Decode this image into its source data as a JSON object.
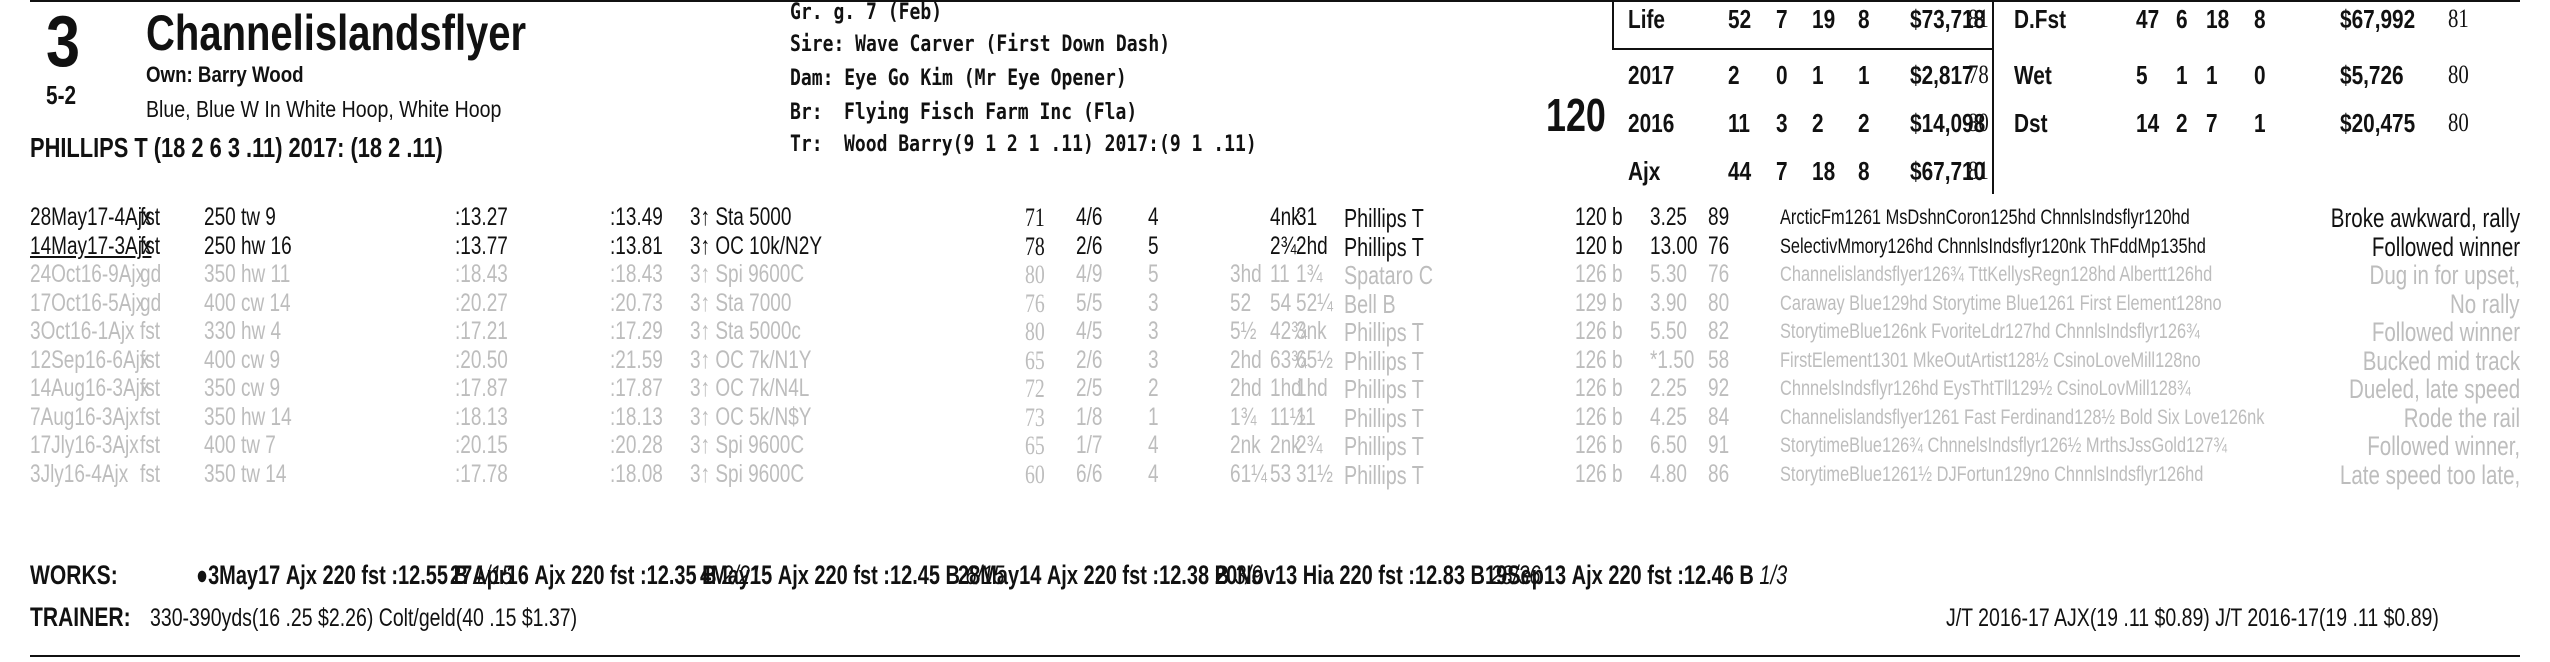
{
  "horse": {
    "program_number": "3",
    "name": "Channelislandsflyer",
    "odds": "5-2",
    "owner": "Own: Barry Wood",
    "silks": "Blue, Blue W In White Hoop, White Hoop",
    "jockey": "PHILLIPS T (18 2 6 3 .11) 2017: (18 2 .11)",
    "sex_age": "Gr. g. 7 (Feb)",
    "sire": "Sire: Wave Carver (First Down Dash)",
    "dam": "Dam: Eye Go Kim (Mr Eye Opener)",
    "breeder_label": "Br:",
    "breeder": "Flying Fisch Farm Inc (Fla)",
    "trainer_label": "Tr:",
    "trainer": "Wood Barry(9 1 2 1 .11) 2017:(9 1 .11)",
    "weight": "120"
  },
  "stats_left": [
    {
      "label": "Life",
      "starts": "52",
      "w": "7",
      "p": "19",
      "s": "8",
      "earn": "$73,718",
      "fig": "81"
    },
    {
      "label": "2017",
      "starts": "2",
      "w": "0",
      "p": "1",
      "s": "1",
      "earn": "$2,817",
      "fig": "78"
    },
    {
      "label": "2016",
      "starts": "11",
      "w": "3",
      "p": "2",
      "s": "2",
      "earn": "$14,098",
      "fig": "80"
    },
    {
      "label": "Ajx",
      "starts": "44",
      "w": "7",
      "p": "18",
      "s": "8",
      "earn": "$67,710",
      "fig": "81"
    }
  ],
  "stats_right": [
    {
      "label": "D.Fst",
      "starts": "47",
      "w": "6",
      "p": "18",
      "s": "8",
      "earn": "$67,992",
      "fig": "81"
    },
    {
      "label": "Wet",
      "starts": "5",
      "w": "1",
      "p": "1",
      "s": "0",
      "earn": "$5,726",
      "fig": "80"
    },
    {
      "label": "Dst",
      "starts": "14",
      "w": "2",
      "p": "7",
      "s": "1",
      "earn": "$20,475",
      "fig": "80"
    }
  ],
  "races": [
    {
      "date": "28May17-4Ajx",
      "trk": "fst",
      "dist": "250 tw 9",
      "t1": ":13.27",
      "t2": ":13.49",
      "cls": "3↑ Sta 5000",
      "speed": "71",
      "pp": "4/6",
      "st": "4",
      "c1": "",
      "c2": "4nk",
      "fin": "31",
      "jock": "Phillips T",
      "wt": "120 b",
      "odds": "3.25",
      "fig": "89",
      "comp": "ArcticFm1261 MsDshnCoron125hd ChnnlsIndsflyr120hd",
      "comment": "Broke awkward, rally",
      "grey": false
    },
    {
      "date": "14May17-3Ajx",
      "trk": "fst",
      "dist": "250 hw 16",
      "t1": ":13.77",
      "t2": ":13.81",
      "cls": "3↑ OC 10k/N2Y",
      "speed": "78",
      "pp": "2/6",
      "st": "5",
      "c1": "",
      "c2": "2¾",
      "fin": "2hd",
      "jock": "Phillips T",
      "wt": "120 b",
      "odds": "13.00",
      "fig": "76",
      "comp": "SelectivMmory126hd ChnnlsIndsflyr120nk ThFddMp135hd",
      "comment": "Followed winner",
      "grey": false
    },
    {
      "date": "24Oct16-9Ajx",
      "trk": "gd",
      "dist": "350 hw 11",
      "t1": ":18.43",
      "t2": ":18.43",
      "cls": "3↑ Spi 9600C",
      "speed": "80",
      "pp": "4/9",
      "st": "5",
      "c1": "3hd",
      "c2": "11",
      "fin": "1¾",
      "jock": "Spataro C",
      "wt": "126 b",
      "odds": "5.30",
      "fig": "76",
      "comp": "Channelislandsflyer126¾ TttKellysRegn128hd Albertt126hd",
      "comment": "Dug in for upset,",
      "grey": true
    },
    {
      "date": "17Oct16-5Ajx",
      "trk": "gd",
      "dist": "400 cw 14",
      "t1": ":20.27",
      "t2": ":20.73",
      "cls": "3↑ Sta 7000",
      "speed": "76",
      "pp": "5/5",
      "st": "3",
      "c1": "52",
      "c2": "54",
      "fin": "52¼",
      "jock": "Bell B",
      "wt": "129 b",
      "odds": "3.90",
      "fig": "80",
      "comp": "Caraway Blue129hd Storytime Blue1261 First Element128no",
      "comment": "No rally",
      "grey": true
    },
    {
      "date": "3Oct16-1Ajx",
      "trk": "fst",
      "dist": "330 hw 4",
      "t1": ":17.21",
      "t2": ":17.29",
      "cls": "3↑ Sta 5000c",
      "speed": "80",
      "pp": "4/5",
      "st": "3",
      "c1": "5½",
      "c2": "42¾",
      "fin": "3nk",
      "jock": "Phillips T",
      "wt": "126 b",
      "odds": "5.50",
      "fig": "82",
      "comp": "StorytimeBlue126nk FvoriteLdr127hd ChnnlsIndsflyr126¾",
      "comment": "Followed winner",
      "grey": true
    },
    {
      "date": "12Sep16-6Ajx",
      "trk": "fst",
      "dist": "400 cw 9",
      "t1": ":20.50",
      "t2": ":21.59",
      "cls": "3↑ OC 7k/N1Y",
      "speed": "65",
      "pp": "2/6",
      "st": "3",
      "c1": "2hd",
      "c2": "63¾",
      "fin": "65½",
      "jock": "Phillips T",
      "wt": "126 b",
      "odds": "*1.50",
      "fig": "58",
      "comp": "FirstElement1301 MkeOutArtist128½ CsinoLoveMill128no",
      "comment": "Bucked mid track",
      "grey": true
    },
    {
      "date": "14Aug16-3Ajx",
      "trk": "fst",
      "dist": "350 cw 9",
      "t1": ":17.87",
      "t2": ":17.87",
      "cls": "3↑ OC 7k/N4L",
      "speed": "72",
      "pp": "2/5",
      "st": "2",
      "c1": "2hd",
      "c2": "1hd",
      "fin": "1hd",
      "jock": "Phillips T",
      "wt": "126 b",
      "odds": "2.25",
      "fig": "92",
      "comp": "ChnnelsIndsflyr126hd EysThtTll129½ CsinoLovMill128¾",
      "comment": "Dueled, late speed",
      "grey": true
    },
    {
      "date": "7Aug16-3Ajx",
      "trk": "fst",
      "dist": "350 hw 14",
      "t1": ":18.13",
      "t2": ":18.13",
      "cls": "3↑ OC 5k/N$Y",
      "speed": "73",
      "pp": "1/8",
      "st": "1",
      "c1": "1¾",
      "c2": "11½",
      "fin": "11",
      "jock": "Phillips T",
      "wt": "126 b",
      "odds": "4.25",
      "fig": "84",
      "comp": "Channelislandsflyer1261 Fast Ferdinand128½ Bold Six Love126nk",
      "comment": "Rode the rail",
      "grey": true
    },
    {
      "date": "17Jly16-3Ajx",
      "trk": "fst",
      "dist": "400 tw 7",
      "t1": ":20.15",
      "t2": ":20.28",
      "cls": "3↑ Spi 9600C",
      "speed": "65",
      "pp": "1/7",
      "st": "4",
      "c1": "2nk",
      "c2": "2nk",
      "fin": "2¾",
      "jock": "Phillips T",
      "wt": "126 b",
      "odds": "6.50",
      "fig": "91",
      "comp": "StorytimeBlue126¾ ChnnelsIndsflyr126½ MrthsJssGold127¾",
      "comment": "Followed winner,",
      "grey": true
    },
    {
      "date": "3Jly16-4Ajx",
      "trk": "fst",
      "dist": "350 tw 14",
      "t1": ":17.78",
      "t2": ":18.08",
      "cls": "3↑ Spi 9600C",
      "speed": "60",
      "pp": "6/6",
      "st": "4",
      "c1": "61¼",
      "c2": "53",
      "fin": "31½",
      "jock": "Phillips T",
      "wt": "126 b",
      "odds": "4.80",
      "fig": "86",
      "comp": "StorytimeBlue1261½ DJFortun129no ChnnlsIndsflyr126hd",
      "comment": "Late speed too late,",
      "grey": true
    }
  ],
  "works": {
    "label": "WORKS:",
    "items": [
      {
        "date": "●3May17",
        "trk": "Ajx",
        "dist": "220 fst",
        "time": ":12.55 B",
        "rank": "1/15"
      },
      {
        "date": "27Apr16",
        "trk": "Ajx",
        "dist": "220 fst",
        "time": ":12.35 B",
        "rank": "2/21"
      },
      {
        "date": "4May15",
        "trk": "Ajx",
        "dist": "220 fst",
        "time": ":12.45 B",
        "rank": "6/15"
      },
      {
        "date": "28May14",
        "trk": "Ajx",
        "dist": "220 fst",
        "time": ":12.38 B",
        "rank": "3/9"
      },
      {
        "date": "20Nov13",
        "trk": "Hia",
        "dist": "220 fst",
        "time": ":12.83 B",
        "rank": "28/36"
      },
      {
        "date": "19Sep13",
        "trk": "Ajx",
        "dist": "220 fst",
        "time": ":12.46 B",
        "rank": "1/3"
      }
    ]
  },
  "trainer_stats": {
    "label": "TRAINER:",
    "text": "330-390yds(16 .25 $2.26) Colt/geld(40 .15 $1.37)",
    "jt": "J/T 2016-17 AJX(19 .11 $0.89)  J/T 2016-17(19 .11 $0.89)"
  }
}
